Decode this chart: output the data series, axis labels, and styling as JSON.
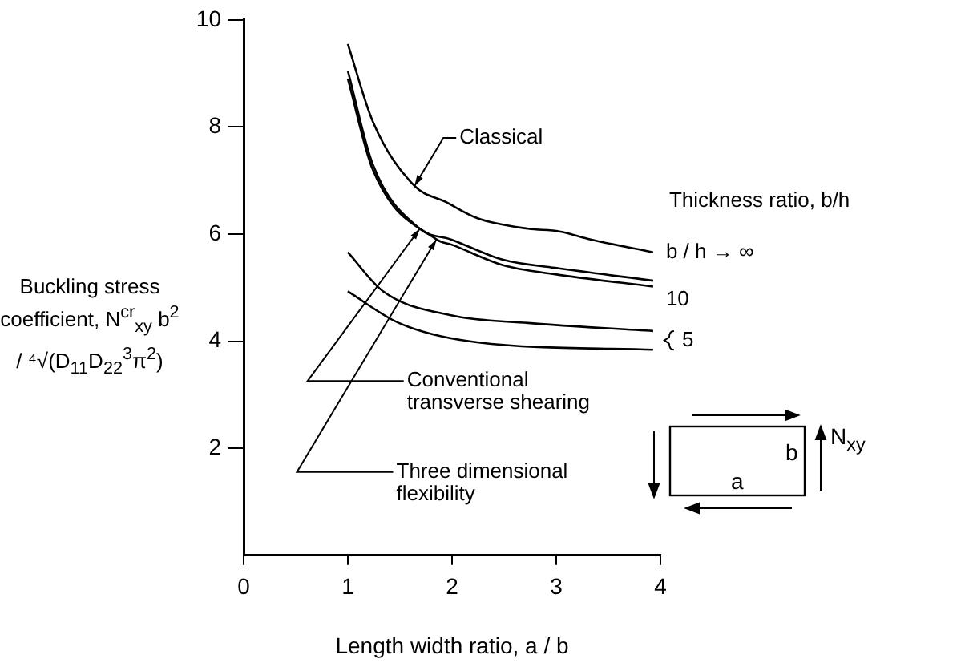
{
  "chart_data": {
    "type": "line",
    "xlabel": "Length width ratio, a / b",
    "ylabel": "Buckling stress coefficient, N$^{cr}$$_{xy}$ b$^{2}$ / ⁴√(D$_{11}$D$_{22}$$^{3}$π$^{2}$)",
    "legend_title": "Thickness ratio, b/h",
    "xlim": [
      0,
      4
    ],
    "xticks": [
      0,
      1,
      2,
      3,
      4
    ],
    "ylim": [
      0,
      10
    ],
    "yticks": [
      2,
      4,
      6,
      8,
      10
    ],
    "grid": false,
    "legend": "right",
    "marker": "none",
    "line_style": "solid",
    "series": [
      {
        "name": "b / h → ∞",
        "color": "#000000",
        "x": [
          1.0,
          1.24,
          1.64,
          1.94,
          2.24,
          2.73,
          3.03,
          3.33,
          3.93
        ],
        "values": [
          9.55,
          8.1,
          6.9,
          6.6,
          6.3,
          6.1,
          6.05,
          5.9,
          5.66
        ]
      },
      {
        "name": "10",
        "color": "#000000",
        "x": [
          1.0,
          1.24,
          1.69,
          1.99,
          2.49,
          2.99,
          3.93
        ],
        "values": [
          9.05,
          7.3,
          6.1,
          5.9,
          5.52,
          5.37,
          5.13
        ]
      },
      {
        "color": "#000000",
        "x": [
          1.0,
          1.24,
          1.85,
          2.0,
          2.49,
          2.99,
          3.93
        ],
        "values": [
          8.9,
          7.2,
          5.9,
          5.8,
          5.42,
          5.25,
          5.02
        ]
      },
      {
        "name": "5",
        "color": "#000000",
        "x": [
          1.0,
          1.34,
          2.0,
          2.73,
          3.93
        ],
        "values": [
          5.66,
          4.93,
          4.48,
          4.34,
          4.19
        ]
      },
      {
        "color": "#000000",
        "x": [
          1.0,
          1.49,
          2.24,
          3.93
        ],
        "values": [
          4.93,
          4.34,
          3.98,
          3.84
        ]
      }
    ],
    "annotations": [
      {
        "text": "Classical",
        "x": 1.64,
        "y": 6.9
      },
      {
        "text": "Conventional transverse shearing",
        "x": 1.69,
        "y": 6.1
      },
      {
        "text": "Three dimensional flexibility",
        "x": 1.85,
        "y": 5.9
      },
      "a",
      "b",
      "N$_{xy}$"
    ]
  }
}
